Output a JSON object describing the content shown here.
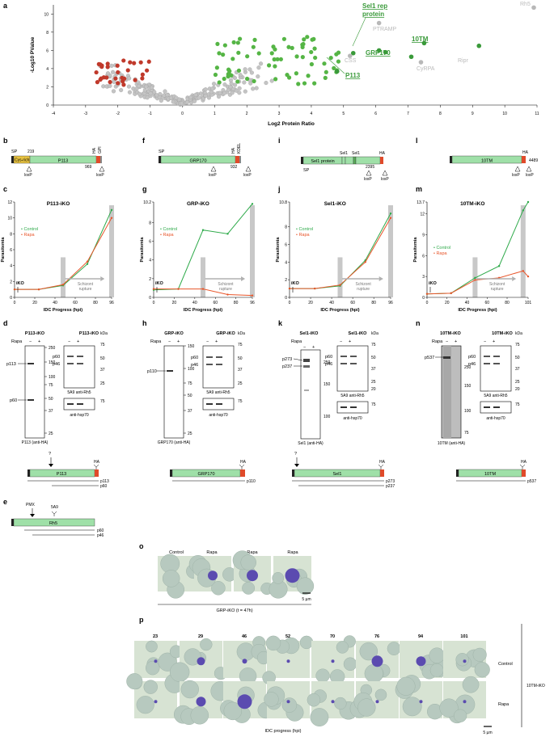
{
  "panels": {
    "a": "a",
    "b": "b",
    "c": "c",
    "d": "d",
    "e": "e",
    "f": "f",
    "g": "g",
    "h": "h",
    "i": "i",
    "j": "j",
    "k": "k",
    "l": "l",
    "m": "m",
    "n": "n",
    "o": "o",
    "p": "p"
  },
  "volcano": {
    "xlabel": "Log2 Protein Ratio",
    "ylabel": "-Log10 PValue",
    "xticks": [
      "-4",
      "-3",
      "-2",
      "-1",
      "0",
      "1",
      "2",
      "3",
      "4",
      "5",
      "6",
      "7",
      "8",
      "9",
      "10",
      "11"
    ],
    "yticks": [
      "0",
      "2",
      "4",
      "6",
      "8",
      "10"
    ],
    "labels": {
      "sel1": "Sel1 rep\nprotein",
      "sel1_l1": "Sel1 rep",
      "sel1_l2": "protein",
      "ptramp": "PTRAMP",
      "tentm": "10TM",
      "grp170": "GRP170",
      "css": "CSS",
      "cyrpa": "CyRPA",
      "ripr": "Ripr",
      "rh5": "Rh5",
      "p113": "P113"
    }
  },
  "chart_data": [
    {
      "type": "scatter",
      "title": "",
      "xlabel": "Log2 Protein Ratio",
      "ylabel": "-Log10 PValue",
      "xlim": [
        -4,
        11
      ],
      "ylim": [
        0,
        11
      ],
      "series": [
        {
          "name": "",
          "color": "#3a9a3a",
          "points": [
            [
              5.3,
              5.7
            ],
            [
              6.1,
              6.0
            ],
            [
              4.8,
              3.7
            ],
            [
              7.5,
              6.8
            ],
            [
              9.2,
              6.5
            ],
            [
              6.3,
              5.8
            ],
            [
              7.1,
              5.3
            ]
          ]
        },
        {
          "name": "",
          "color": "#c0392b",
          "points": [
            [
              -2.5,
              4.2
            ],
            [
              -2.0,
              3.6
            ],
            [
              -1.8,
              2.9
            ],
            [
              -1.5,
              4.6
            ],
            [
              -1.1,
              3.8
            ]
          ]
        },
        {
          "name": "",
          "color": "#aaaaaa",
          "points": [
            [
              5.2,
              5.4
            ],
            [
              7.4,
              4.7
            ],
            [
              10.9,
              10.7
            ],
            [
              6.1,
              9.0
            ]
          ]
        }
      ]
    },
    {
      "type": "line",
      "title": "P113-iKO",
      "xlabel": "IDC Progress (hpi)",
      "ylabel": "Parasitemia",
      "xlim": [
        0,
        96
      ],
      "ylim": [
        0,
        12
      ],
      "x": [
        0,
        24,
        48,
        72,
        96
      ],
      "series": [
        {
          "name": "Control",
          "values": [
            1.0,
            1.0,
            1.5,
            4.2,
            11.0
          ]
        },
        {
          "name": "Rapa",
          "values": [
            1.0,
            1.0,
            1.6,
            4.5,
            10.0
          ]
        }
      ]
    },
    {
      "type": "line",
      "title": "GRP-iKO",
      "xlabel": "IDC Progress (hpi)",
      "ylabel": "Parasitemia",
      "xlim": [
        0,
        96
      ],
      "ylim": [
        0,
        10.2
      ],
      "x": [
        0,
        24,
        48,
        72,
        96
      ],
      "series": [
        {
          "name": "Control",
          "values": [
            0.8,
            0.9,
            7.2,
            6.8,
            10.0
          ]
        },
        {
          "name": "Rapa",
          "values": [
            0.9,
            0.9,
            0.9,
            0.3,
            0.2
          ]
        }
      ]
    },
    {
      "type": "line",
      "title": "Sel1-iKO",
      "xlabel": "IDC Progress (hpi)",
      "ylabel": "Parasitemia",
      "xlim": [
        0,
        96
      ],
      "ylim": [
        0,
        10.8
      ],
      "x": [
        0,
        24,
        48,
        72,
        96
      ],
      "series": [
        {
          "name": "Control",
          "values": [
            1.0,
            1.0,
            1.3,
            4.2,
            9.5
          ]
        },
        {
          "name": "Rapa",
          "values": [
            1.0,
            1.0,
            1.4,
            4.0,
            9.0
          ]
        }
      ]
    },
    {
      "type": "line",
      "title": "10TM-iKO",
      "xlabel": "IDC Progress (hpi)",
      "ylabel": "Parasitemia",
      "xlim": [
        0,
        101
      ],
      "ylim": [
        0,
        13.7
      ],
      "x": [
        0,
        24,
        48,
        72,
        96,
        101
      ],
      "series": [
        {
          "name": "Control",
          "values": [
            0.5,
            0.6,
            2.8,
            4.5,
            12.5,
            13.7
          ]
        },
        {
          "name": "Rapa",
          "values": [
            0.5,
            0.6,
            2.5,
            2.8,
            3.8,
            3.0
          ]
        }
      ]
    }
  ],
  "schematics": {
    "b": {
      "sp": "SP",
      "cys": "Cys-rich",
      "num219": "219",
      "main": "P113",
      "ha": "HA",
      "gpi": "GPI",
      "num": "969",
      "loxp1": "loxP",
      "loxp2": "loxP"
    },
    "f": {
      "sp": "SP",
      "main": "GRP170",
      "ha": "HA",
      "kdel": "KDEL",
      "num": "932",
      "loxp1": "loxP",
      "loxp2": "loxP"
    },
    "i": {
      "sel1a": "Sel1",
      "sel1b": "Sel1",
      "main": "Sel1 protein",
      "sp": "SP",
      "ha": "HA",
      "num": "2395",
      "loxp1": "loxP",
      "loxp2": "loxP"
    },
    "l": {
      "main": "10TM",
      "ha": "HA",
      "num": "4489",
      "loxp1": "loxP",
      "loxp2": "loxP"
    }
  },
  "growth": {
    "c": {
      "title": "P113-iKO",
      "control": "Control",
      "rapa": "Rapa",
      "ikotag": "iKO",
      "schizont": "Schizont\nrupture",
      "s1": "Schizont",
      "s2": "rupture",
      "xlabel": "IDC Progress (hpi)",
      "ylabel": "Parasitemia",
      "yticks": [
        "0",
        "2",
        "4",
        "6",
        "8",
        "10",
        "12"
      ],
      "xticks": [
        "0",
        "20",
        "40",
        "60",
        "80",
        "96"
      ]
    },
    "g": {
      "title": "GRP-iKO",
      "control": "Control",
      "rapa": "Rapa",
      "ikotag": "iKO",
      "s1": "Schizont",
      "s2": "rupture",
      "xlabel": "IDC Progress (hpi)",
      "ylabel": "Parasitemia",
      "yticks": [
        "0",
        "2",
        "4",
        "6",
        "8",
        "10.2"
      ],
      "xticks": [
        "0",
        "20",
        "40",
        "60",
        "80",
        "96"
      ]
    },
    "j": {
      "title": "Sel1-iKO",
      "control": "Control",
      "rapa": "Rapa",
      "ikotag": "iKO",
      "s1": "Schizont",
      "s2": "rupture",
      "xlabel": "IDC Progress (hpi)",
      "ylabel": "Parasitemia",
      "yticks": [
        "0",
        "2",
        "4",
        "6",
        "8",
        "10.8"
      ],
      "xticks": [
        "0",
        "20",
        "40",
        "60",
        "80",
        "96"
      ]
    },
    "m": {
      "title": "10TM-iKO",
      "control": "Control",
      "rapa": "Rapa",
      "ikotag": "iKO",
      "s1": "Schizont",
      "s2": "rupture",
      "xlabel": "IDC Progress (hpi)",
      "ylabel": "Parasitemia",
      "yticks": [
        "0",
        "3",
        "6",
        "9",
        "12",
        "13.7"
      ],
      "xticks": [
        "0",
        "20",
        "40",
        "60",
        "80",
        "101"
      ]
    }
  },
  "blots": {
    "d": {
      "t1": "P113-iKO",
      "t2": "P113-iKO",
      "rapa": "Rapa",
      "minus": "−",
      "plus": "+",
      "kda": "kDa",
      "p113": "p113",
      "p60": "p60",
      "p60b": "p60",
      "p46": "p46",
      "m1": [
        "250",
        "150",
        "100",
        "75",
        "50",
        "37",
        "25"
      ],
      "m2": [
        "75",
        "50",
        "37",
        "25"
      ],
      "m3": [
        "75"
      ],
      "cap1": "P113 (anti-HA)",
      "cap2": "5A9 anti-Rh5",
      "cap3": "anti-hsp70",
      "q": "?",
      "ha": "HA",
      "main": "P113",
      "lp113": "p113",
      "lp60": "p60"
    },
    "e": {
      "pmx": "PMX",
      "a59": "5A9",
      "main": "Rh5",
      "lp60": "p60",
      "lp46": "p46"
    },
    "h": {
      "t1": "GRP-iKO",
      "t2": "GRP-iKO",
      "rapa": "Rapa",
      "minus": "−",
      "plus": "+",
      "kda": "kDa",
      "p110": "p110",
      "p60": "p60",
      "p46": "p46",
      "m1": [
        "150",
        "100",
        "75",
        "50",
        "37",
        "25"
      ],
      "m2": [
        "75",
        "50",
        "37",
        "25"
      ],
      "m3": [
        "75"
      ],
      "cap1": "GRP170 (anti-HA)",
      "cap2": "5A9 anti-Rh5",
      "cap3": "anti-hsp70",
      "ha": "HA",
      "main": "GRP170",
      "lp110": "p110"
    },
    "k": {
      "t1": "Sel1-iKO",
      "t2": "Sel1-iKO",
      "rapa": "Rapa",
      "minus": "−",
      "plus": "+",
      "kda": "kDa",
      "p273": "p273",
      "p237": "p237",
      "p60": "p60",
      "p46": "p46",
      "m1": [
        "250",
        "150",
        "100"
      ],
      "m2": [
        "75",
        "50",
        "37",
        "25",
        "20"
      ],
      "m3": [
        "75"
      ],
      "cap1": "Sel1 (anti-HA)",
      "cap2": "5A9 anti-Rh5",
      "cap3": "anti-hsp70",
      "q": "?",
      "ha": "HA",
      "main": "Sel1",
      "lp273": "p273",
      "lp237": "p237"
    },
    "n": {
      "t1": "10TM-iKO",
      "t2": "10TM-iKO",
      "rapa": "Rapa",
      "minus": "−",
      "plus": "+",
      "kda": "kDa",
      "p537": "p537",
      "p60": "p60",
      "p46": "p46",
      "m1": [
        "250",
        "150",
        "100",
        "75"
      ],
      "m2": [
        "75",
        "50",
        "37",
        "25",
        "20"
      ],
      "m3": [
        "75"
      ],
      "cap1": "10TM (anti-HA)",
      "cap2": "5A9 anti-Rh5",
      "cap3": "anti-hsp70",
      "ha": "HA",
      "main": "10TM",
      "lp537": "p537"
    }
  },
  "micro_o": {
    "control": "Control",
    "rapa": "Rapa",
    "scale": "5 µm",
    "caption": "GRP-iKO (t = 47h)"
  },
  "micro_p": {
    "times": [
      "23",
      "29",
      "46",
      "52",
      "70",
      "76",
      "94",
      "101"
    ],
    "control": "Control",
    "rapa": "Rapa",
    "side": "10TM-iKO",
    "xlabel": "IDC progress (hpi)",
    "scale": "5 µm"
  }
}
